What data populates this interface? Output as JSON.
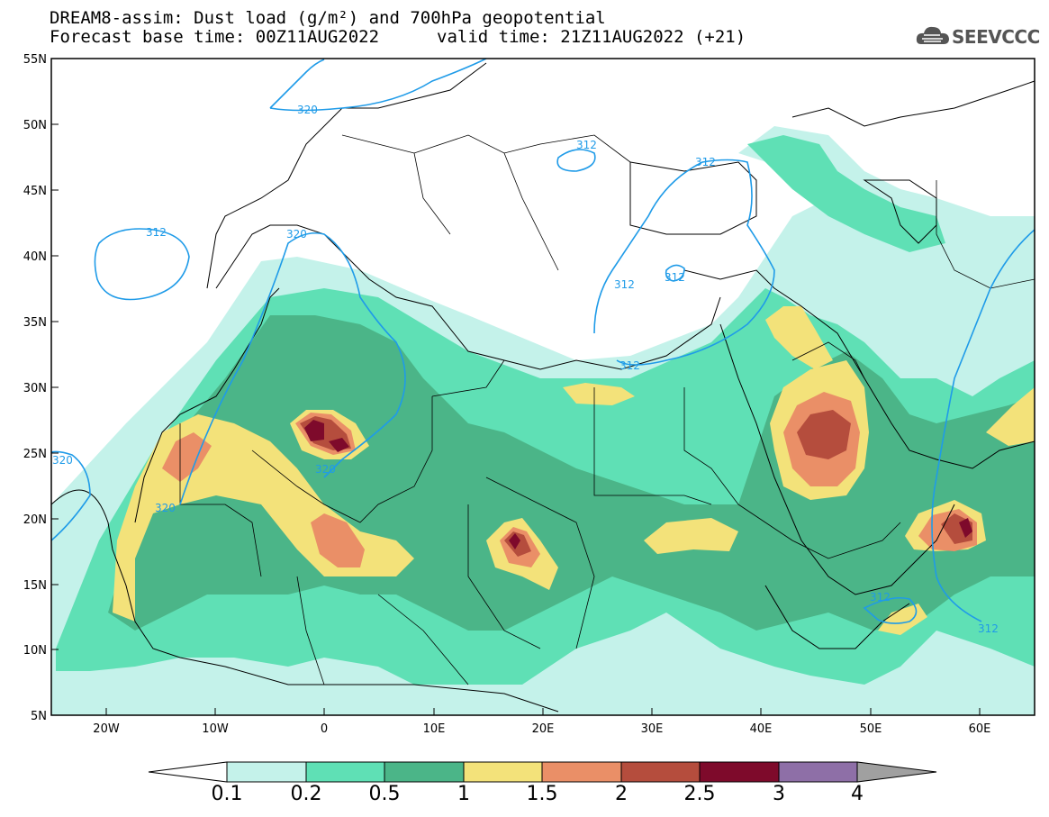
{
  "title_line1": "DREAM8-assim: Dust load (g/m²) and 700hPa geopotential",
  "title_line2_base": "Forecast base time: 00Z11AUG2022",
  "title_line2_valid": "valid time: 21Z11AUG2022 (+21)",
  "logo_text": "SEEVCCC",
  "logo_icon": "cloud-icon",
  "lat_labels": [
    "55N",
    "50N",
    "45N",
    "40N",
    "35N",
    "30N",
    "25N",
    "20N",
    "15N",
    "10N",
    "5N"
  ],
  "lon_labels": [
    "20W",
    "10W",
    "0",
    "10E",
    "20E",
    "30E",
    "40E",
    "50E",
    "60E"
  ],
  "colorbar": {
    "ticks": [
      "0.1",
      "0.2",
      "0.5",
      "1",
      "1.5",
      "2",
      "2.5",
      "3",
      "4"
    ],
    "colors": [
      "#c4f2ea",
      "#5fe0b5",
      "#4bb588",
      "#f3e27a",
      "#ea8f67",
      "#b54d3d",
      "#7e0a2b",
      "#8e6fa7"
    ],
    "under_color": "#ffffff",
    "over_color": "#a0a0a0"
  },
  "contour_labels": [
    "320",
    "312",
    "312",
    "320",
    "312",
    "312",
    "320",
    "320",
    "312",
    "320",
    "312",
    "312",
    "312"
  ],
  "contour_color": "#1f9be8"
}
